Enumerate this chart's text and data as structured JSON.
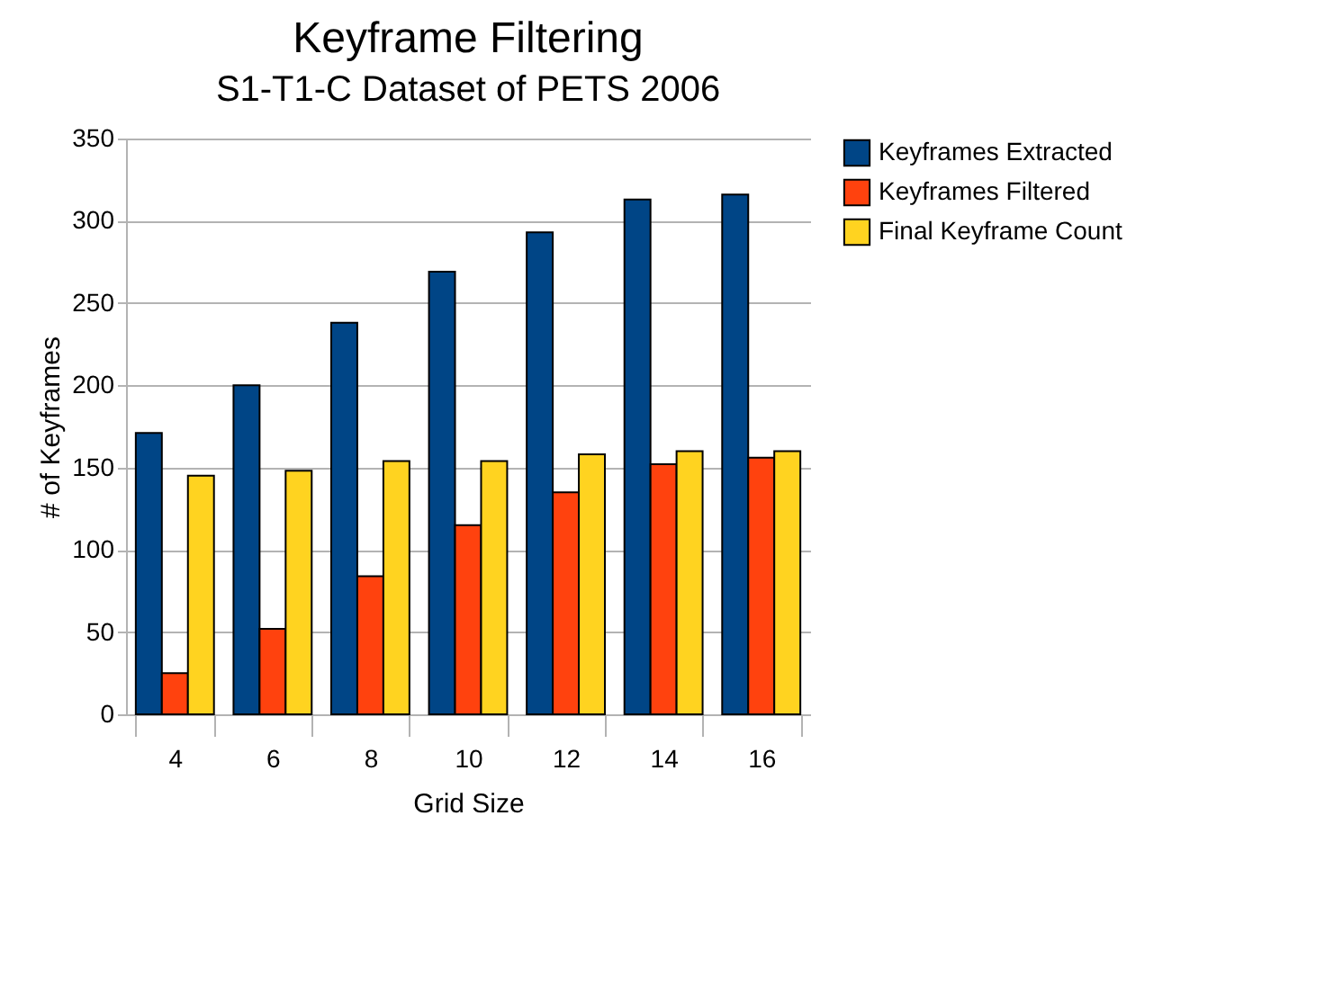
{
  "chart_data": {
    "type": "bar",
    "title": "Keyframe Filtering",
    "subtitle": "S1-T1-C Dataset of PETS 2006",
    "xlabel": "Grid Size",
    "ylabel": "# of Keyframes",
    "categories": [
      "4",
      "6",
      "8",
      "10",
      "12",
      "14",
      "16"
    ],
    "series": [
      {
        "name": "Keyframes Extracted",
        "color": "#004586",
        "values": [
          171,
          200,
          238,
          269,
          293,
          313,
          316
        ]
      },
      {
        "name": "Keyframes Filtered",
        "color": "#ff420e",
        "values": [
          25,
          52,
          84,
          115,
          135,
          152,
          156
        ]
      },
      {
        "name": "Final Keyframe Count",
        "color": "#ffd320",
        "values": [
          145,
          148,
          154,
          154,
          158,
          160,
          160
        ]
      }
    ],
    "ylim": [
      0,
      350
    ],
    "yticks": [
      0,
      50,
      100,
      150,
      200,
      250,
      300,
      350
    ],
    "grid": "y",
    "legend": "right"
  }
}
